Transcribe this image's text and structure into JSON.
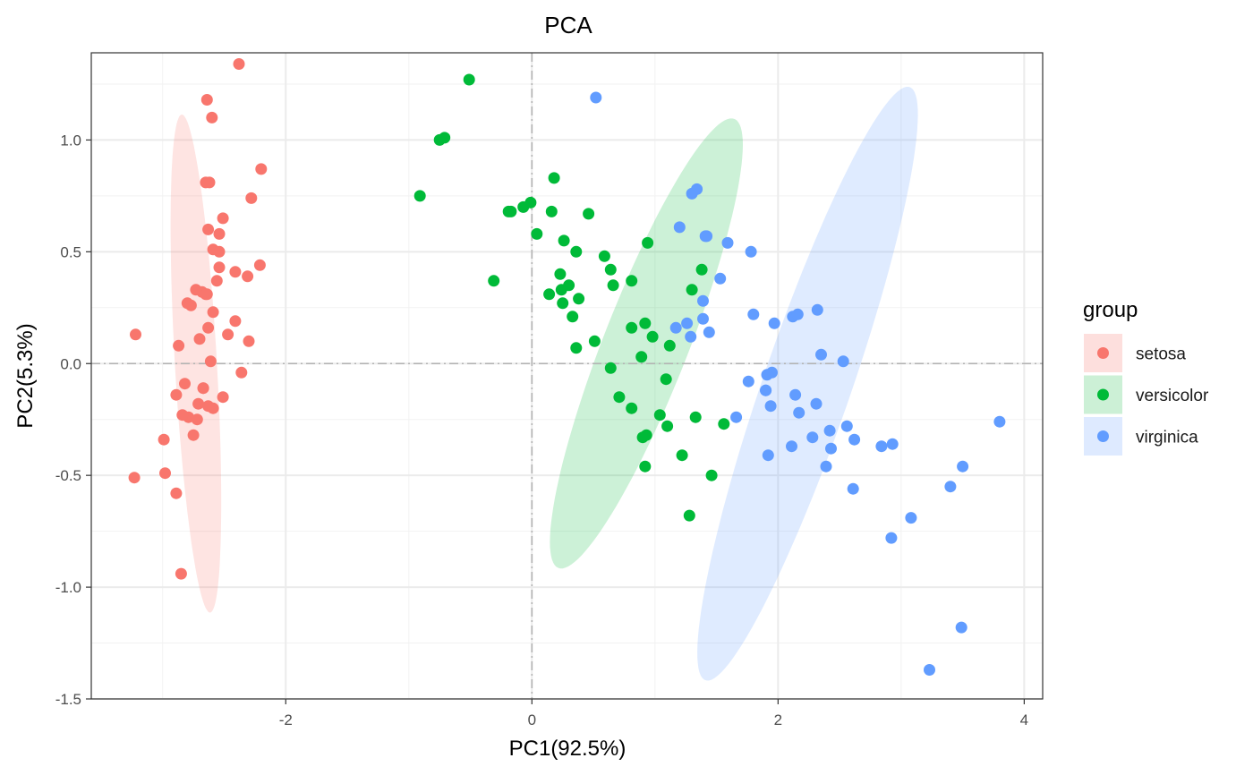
{
  "chart_data": {
    "type": "scatter",
    "title": "PCA",
    "xlabel": "PC1(92.5%)",
    "ylabel": "PC2(5.3%)",
    "xlim": [
      -3.58,
      4.15
    ],
    "ylim": [
      -1.5,
      1.39
    ],
    "xticks": [
      -2,
      0,
      2,
      4
    ],
    "xtick_labels": [
      "-2",
      "0",
      "2",
      "4"
    ],
    "yticks": [
      -1.5,
      -1.0,
      -0.5,
      0.0,
      0.5,
      1.0
    ],
    "ytick_labels": [
      "-1.5",
      "-1.0",
      "-0.5",
      "0.0",
      "0.5",
      "1.0"
    ],
    "grid": true,
    "reference_lines": {
      "x": 0,
      "y": 0
    },
    "legend": {
      "title": "group",
      "position": "right"
    },
    "series": [
      {
        "name": "setosa",
        "color": "#F8766D",
        "fill": "#FDDFDD",
        "ellipse": {
          "cx": -2.73,
          "cy": 0.0,
          "a": 1.12,
          "b": 0.17,
          "angle_deg": -84
        },
        "points": [
          [
            -2.68,
            0.32
          ],
          [
            -2.71,
            -0.18
          ],
          [
            -2.89,
            -0.14
          ],
          [
            -2.75,
            -0.32
          ],
          [
            -2.73,
            0.33
          ],
          [
            -2.28,
            0.74
          ],
          [
            -2.82,
            -0.09
          ],
          [
            -2.63,
            0.16
          ],
          [
            -2.89,
            -0.58
          ],
          [
            -2.67,
            -0.11
          ],
          [
            -2.51,
            0.65
          ],
          [
            -2.61,
            0.01
          ],
          [
            -2.79,
            -0.24
          ],
          [
            -3.23,
            -0.51
          ],
          [
            -2.64,
            1.18
          ],
          [
            -2.38,
            1.34
          ],
          [
            -2.62,
            0.81
          ],
          [
            -2.65,
            0.31
          ],
          [
            -2.2,
            0.87
          ],
          [
            -2.59,
            0.51
          ],
          [
            -2.31,
            0.39
          ],
          [
            -2.54,
            0.43
          ],
          [
            -3.22,
            0.13
          ],
          [
            -2.3,
            0.1
          ],
          [
            -2.36,
            -0.04
          ],
          [
            -2.51,
            -0.15
          ],
          [
            -2.47,
            0.13
          ],
          [
            -2.56,
            0.37
          ],
          [
            -2.64,
            0.31
          ],
          [
            -2.63,
            -0.19
          ],
          [
            -2.59,
            -0.2
          ],
          [
            -2.41,
            0.41
          ],
          [
            -2.65,
            0.81
          ],
          [
            -2.6,
            1.1
          ],
          [
            -2.67,
            -0.11
          ],
          [
            -2.87,
            0.08
          ],
          [
            -2.63,
            0.6
          ],
          [
            -2.8,
            0.27
          ],
          [
            -2.98,
            -0.49
          ],
          [
            -2.59,
            0.23
          ],
          [
            -2.77,
            0.26
          ],
          [
            -2.85,
            -0.94
          ],
          [
            -2.99,
            -0.34
          ],
          [
            -2.41,
            0.19
          ],
          [
            -2.21,
            0.44
          ],
          [
            -2.72,
            -0.25
          ],
          [
            -2.54,
            0.5
          ],
          [
            -2.84,
            -0.23
          ],
          [
            -2.54,
            0.58
          ],
          [
            -2.7,
            0.11
          ]
        ]
      },
      {
        "name": "versicolor",
        "color": "#00BA38",
        "fill": "#CCF0D6",
        "ellipse": {
          "cx": 0.93,
          "cy": 0.09,
          "a": 1.24,
          "b": 0.3,
          "angle_deg": 53
        },
        "points": [
          [
            1.28,
            -0.68
          ],
          [
            0.93,
            -0.32
          ],
          [
            1.46,
            -0.5
          ],
          [
            0.18,
            0.83
          ],
          [
            1.09,
            -0.07
          ],
          [
            0.64,
            0.42
          ],
          [
            1.1,
            -0.28
          ],
          [
            -0.75,
            1.0
          ],
          [
            1.04,
            -0.23
          ],
          [
            -0.01,
            0.72
          ],
          [
            -0.51,
            1.27
          ],
          [
            0.51,
            0.1
          ],
          [
            0.26,
            0.55
          ],
          [
            0.98,
            0.12
          ],
          [
            -0.17,
            0.68
          ],
          [
            0.92,
            -0.46
          ],
          [
            0.66,
            0.35
          ],
          [
            0.24,
            0.33
          ],
          [
            0.94,
            0.54
          ],
          [
            0.04,
            0.58
          ],
          [
            1.12,
            0.08
          ],
          [
            0.36,
            0.07
          ],
          [
            1.3,
            0.33
          ],
          [
            0.92,
            0.18
          ],
          [
            0.71,
            -0.15
          ],
          [
            0.9,
            -0.33
          ],
          [
            1.33,
            -0.24
          ],
          [
            1.56,
            -0.27
          ],
          [
            0.81,
            0.16
          ],
          [
            -0.31,
            0.37
          ],
          [
            -0.07,
            0.7
          ],
          [
            -0.19,
            0.68
          ],
          [
            0.14,
            0.31
          ],
          [
            1.38,
            0.42
          ],
          [
            0.59,
            0.48
          ],
          [
            0.81,
            -0.2
          ],
          [
            1.22,
            -0.41
          ],
          [
            0.81,
            0.37
          ],
          [
            0.25,
            0.27
          ],
          [
            0.16,
            0.68
          ],
          [
            0.46,
            0.67
          ],
          [
            0.89,
            0.03
          ],
          [
            0.23,
            0.4
          ],
          [
            -0.71,
            1.01
          ],
          [
            0.36,
            0.5
          ],
          [
            0.33,
            0.21
          ],
          [
            0.38,
            0.29
          ],
          [
            0.64,
            -0.02
          ],
          [
            -0.91,
            0.75
          ],
          [
            0.3,
            0.35
          ]
        ]
      },
      {
        "name": "virginica",
        "color": "#619CFF",
        "fill": "#DEEAFF",
        "ellipse": {
          "cx": 2.24,
          "cy": -0.09,
          "a": 1.57,
          "b": 0.32,
          "angle_deg": 57
        },
        "points": [
          [
            2.53,
            0.01
          ],
          [
            1.41,
            0.57
          ],
          [
            2.62,
            -0.34
          ],
          [
            1.97,
            0.18
          ],
          [
            2.35,
            0.04
          ],
          [
            3.4,
            -0.55
          ],
          [
            0.52,
            1.19
          ],
          [
            2.93,
            -0.36
          ],
          [
            2.32,
            0.24
          ],
          [
            2.92,
            -0.78
          ],
          [
            1.66,
            -0.24
          ],
          [
            1.8,
            0.22
          ],
          [
            2.17,
            -0.22
          ],
          [
            1.34,
            0.78
          ],
          [
            1.59,
            0.54
          ],
          [
            1.9,
            -0.12
          ],
          [
            1.95,
            -0.04
          ],
          [
            3.49,
            -1.18
          ],
          [
            3.8,
            -0.26
          ],
          [
            1.3,
            0.76
          ],
          [
            2.43,
            -0.38
          ],
          [
            1.2,
            0.61
          ],
          [
            3.5,
            -0.46
          ],
          [
            1.39,
            0.2
          ],
          [
            2.28,
            -0.33
          ],
          [
            2.61,
            -0.56
          ],
          [
            1.26,
            0.18
          ],
          [
            1.29,
            0.12
          ],
          [
            2.12,
            0.21
          ],
          [
            2.39,
            -0.46
          ],
          [
            2.84,
            -0.37
          ],
          [
            3.23,
            -1.37
          ],
          [
            2.16,
            0.22
          ],
          [
            1.44,
            0.14
          ],
          [
            1.78,
            0.5
          ],
          [
            3.08,
            -0.69
          ],
          [
            2.14,
            -0.14
          ],
          [
            1.91,
            -0.05
          ],
          [
            1.17,
            0.16
          ],
          [
            2.11,
            -0.37
          ],
          [
            2.31,
            -0.18
          ],
          [
            1.92,
            -0.41
          ],
          [
            1.42,
            0.57
          ],
          [
            2.56,
            -0.28
          ],
          [
            2.42,
            -0.3
          ],
          [
            1.94,
            -0.19
          ],
          [
            1.53,
            0.38
          ],
          [
            1.76,
            -0.08
          ],
          [
            1.9,
            -0.12
          ],
          [
            1.39,
            0.28
          ]
        ]
      }
    ]
  }
}
